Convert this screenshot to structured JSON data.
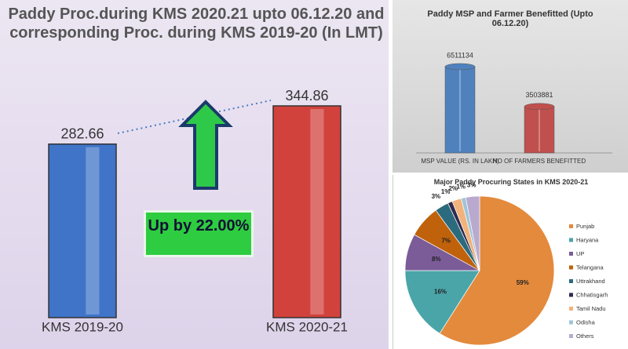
{
  "chart_data": [
    {
      "type": "bar",
      "title": "Paddy Proc.during  KMS 2020.21 upto 06.12.20 and corresponding Proc. during  KMS 2019-20 (In LMT)",
      "categories": [
        "KMS 2019-20",
        "KMS 2020-21"
      ],
      "values": [
        282.66,
        344.86
      ],
      "colors": [
        "#3f74c8",
        "#d2423c"
      ],
      "annotation": "Up by 22.00%"
    },
    {
      "type": "bar",
      "title": "Paddy MSP and Farmer Benefitted  (Upto 06.12.20)",
      "categories": [
        "MSP VALUE (RS. IN LAKH)",
        "NO OF FARMERS BENEFITTED"
      ],
      "values": [
        6511134,
        3503881
      ],
      "colors": [
        "#4f81bd",
        "#c0504d"
      ]
    },
    {
      "type": "pie",
      "title": "Major Paddy Procuring States in KMS 2020-21",
      "categories": [
        "Punjab",
        "Haryana",
        "UP",
        "Telangana",
        "Uttrakhand",
        "Chhatisgarh",
        "Tamil Nadu",
        "Odisha",
        "Others"
      ],
      "values": [
        59,
        16,
        8,
        7,
        3,
        1,
        2,
        1,
        3
      ],
      "value_labels": [
        "59%",
        "16%",
        "8%",
        "7%",
        "3%",
        "1%",
        "2%",
        "1%",
        "3%"
      ],
      "colors": [
        "#e48a3c",
        "#4aa5a8",
        "#7b5c98",
        "#c0620b",
        "#2c6b7d",
        "#2f2a4f",
        "#f2b27b",
        "#9fc4d6",
        "#b9a9cf"
      ]
    }
  ]
}
